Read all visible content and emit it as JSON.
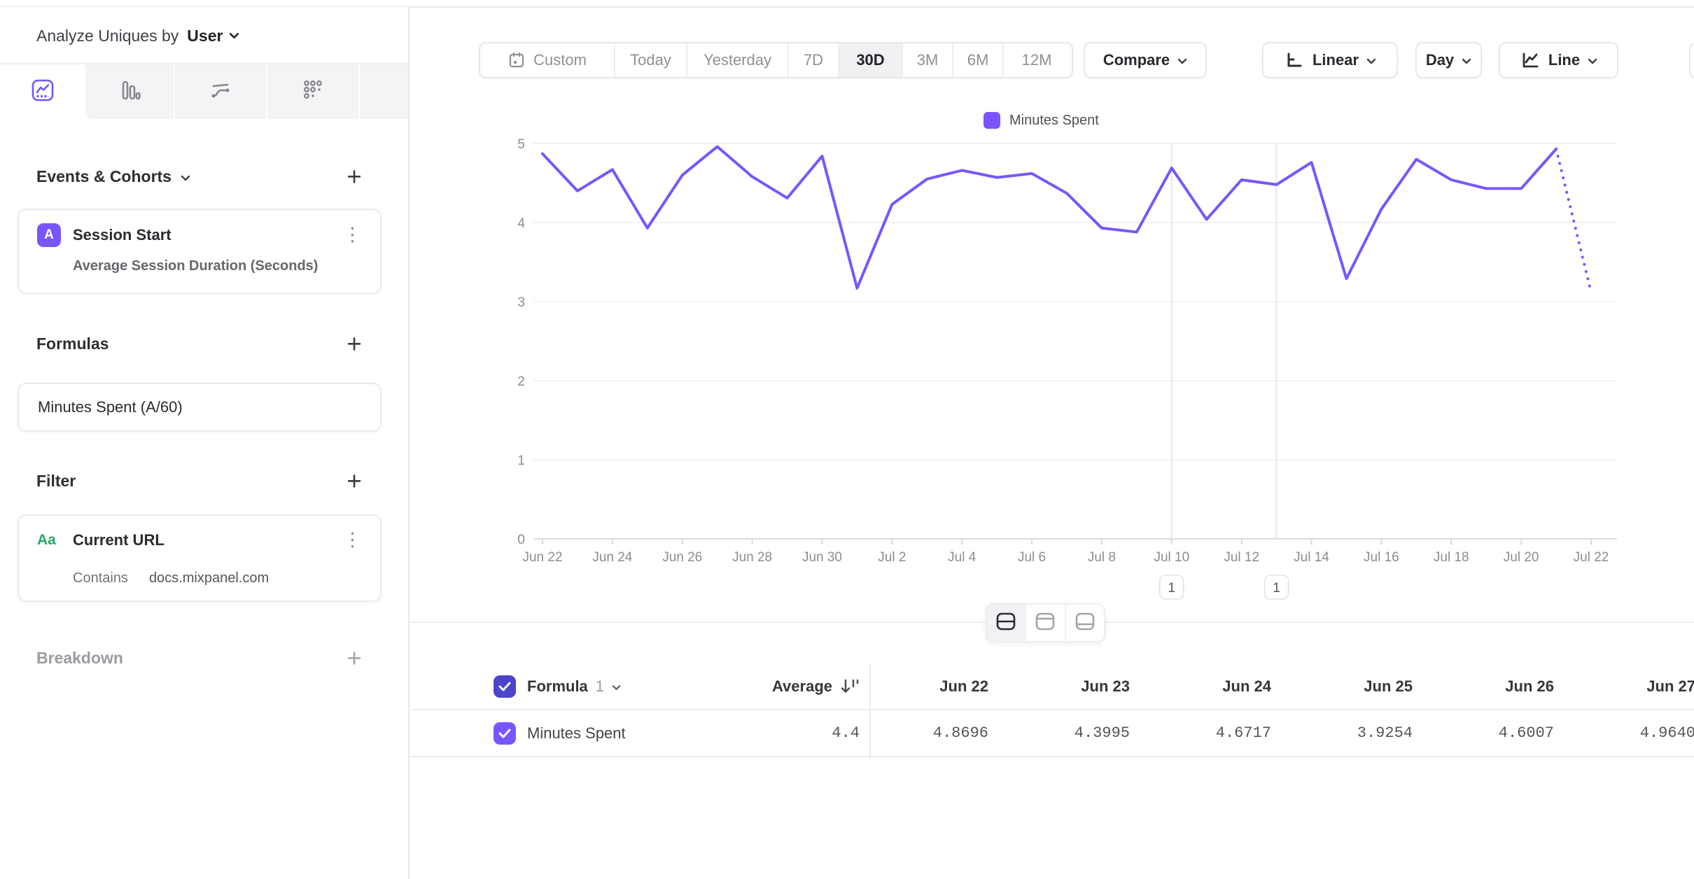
{
  "sidebar": {
    "analyze_label": "Analyze Uniques by",
    "analyze_value": "User",
    "sections": {
      "events_title": "Events & Cohorts",
      "formulas_title": "Formulas",
      "filter_title": "Filter",
      "breakdown_title": "Breakdown"
    },
    "event_card": {
      "badge": "A",
      "title": "Session Start",
      "subtitle": "Average Session Duration (Seconds)"
    },
    "formula_card": {
      "title": "Minutes Spent (A/60)"
    },
    "filter_card": {
      "badge": "Aa",
      "title": "Current URL",
      "operator": "Contains",
      "value": "docs.mixpanel.com"
    },
    "add_label": "+"
  },
  "toolbar": {
    "ranges": [
      "Custom",
      "Today",
      "Yesterday",
      "7D",
      "30D",
      "3M",
      "6M",
      "12M"
    ],
    "selected_range": "30D",
    "compare_label": "Compare",
    "scale_label": "Linear",
    "interval_label": "Day",
    "chart_type_label": "Line"
  },
  "legend": {
    "label": "Minutes Spent"
  },
  "chart_data": {
    "type": "line",
    "title": "",
    "xlabel": "",
    "ylabel": "",
    "ylim": [
      0,
      5
    ],
    "yticks": [
      0,
      1,
      2,
      3,
      4,
      5
    ],
    "xtick_every": 2,
    "grid": true,
    "legend_position": "top",
    "x": [
      "Jun 22",
      "Jun 23",
      "Jun 24",
      "Jun 25",
      "Jun 26",
      "Jun 27",
      "Jun 28",
      "Jun 29",
      "Jun 30",
      "Jul 1",
      "Jul 2",
      "Jul 3",
      "Jul 4",
      "Jul 5",
      "Jul 6",
      "Jul 7",
      "Jul 8",
      "Jul 9",
      "Jul 10",
      "Jul 11",
      "Jul 12",
      "Jul 13",
      "Jul 14",
      "Jul 15",
      "Jul 16",
      "Jul 17",
      "Jul 18",
      "Jul 19",
      "Jul 20",
      "Jul 21",
      "Jul 22"
    ],
    "series": [
      {
        "name": "Minutes Spent",
        "values": [
          4.87,
          4.4,
          4.67,
          3.93,
          4.6,
          4.96,
          4.58,
          4.31,
          4.84,
          3.17,
          4.23,
          4.55,
          4.66,
          4.57,
          4.62,
          4.37,
          3.93,
          3.88,
          4.69,
          4.04,
          4.54,
          4.48,
          4.76,
          3.29,
          4.17,
          4.8,
          4.54,
          4.43,
          4.43,
          4.93,
          3.12
        ]
      }
    ],
    "incomplete_last_point_dotted": true
  },
  "annotations": [
    {
      "label": "1",
      "date": "Jul 10"
    },
    {
      "label": "1",
      "date": "Jul 13"
    }
  ],
  "table": {
    "name_header": "Formula",
    "name_header_index": "1",
    "average_header": "Average",
    "date_headers": [
      "Jun 22",
      "Jun 23",
      "Jun 24",
      "Jun 25",
      "Jun 26",
      "Jun 27"
    ],
    "row": {
      "name": "Minutes Spent",
      "average": "4.4",
      "values": [
        "4.8696",
        "4.3995",
        "4.6717",
        "3.9254",
        "4.6007",
        "4.9640"
      ]
    }
  },
  "icons": {
    "tab_icons": [
      "insights-line-chart",
      "bar-chart",
      "flows",
      "retention-grid"
    ],
    "calendar": "calendar-icon",
    "linear_axis": "linear-axis-icon",
    "line_chart": "line-chart-icon",
    "sort": "sort-descending-icon",
    "layout": [
      "split-view",
      "chart-view",
      "table-view"
    ]
  },
  "colors": {
    "accent": "#7856FF",
    "accent_dark": "#4C44CB",
    "green": "#27A566",
    "grid_line": "#EDEDF0",
    "axis_text": "#8C8C91",
    "selected_bg": "#F1F1F3",
    "border": "#E7E7EA"
  }
}
